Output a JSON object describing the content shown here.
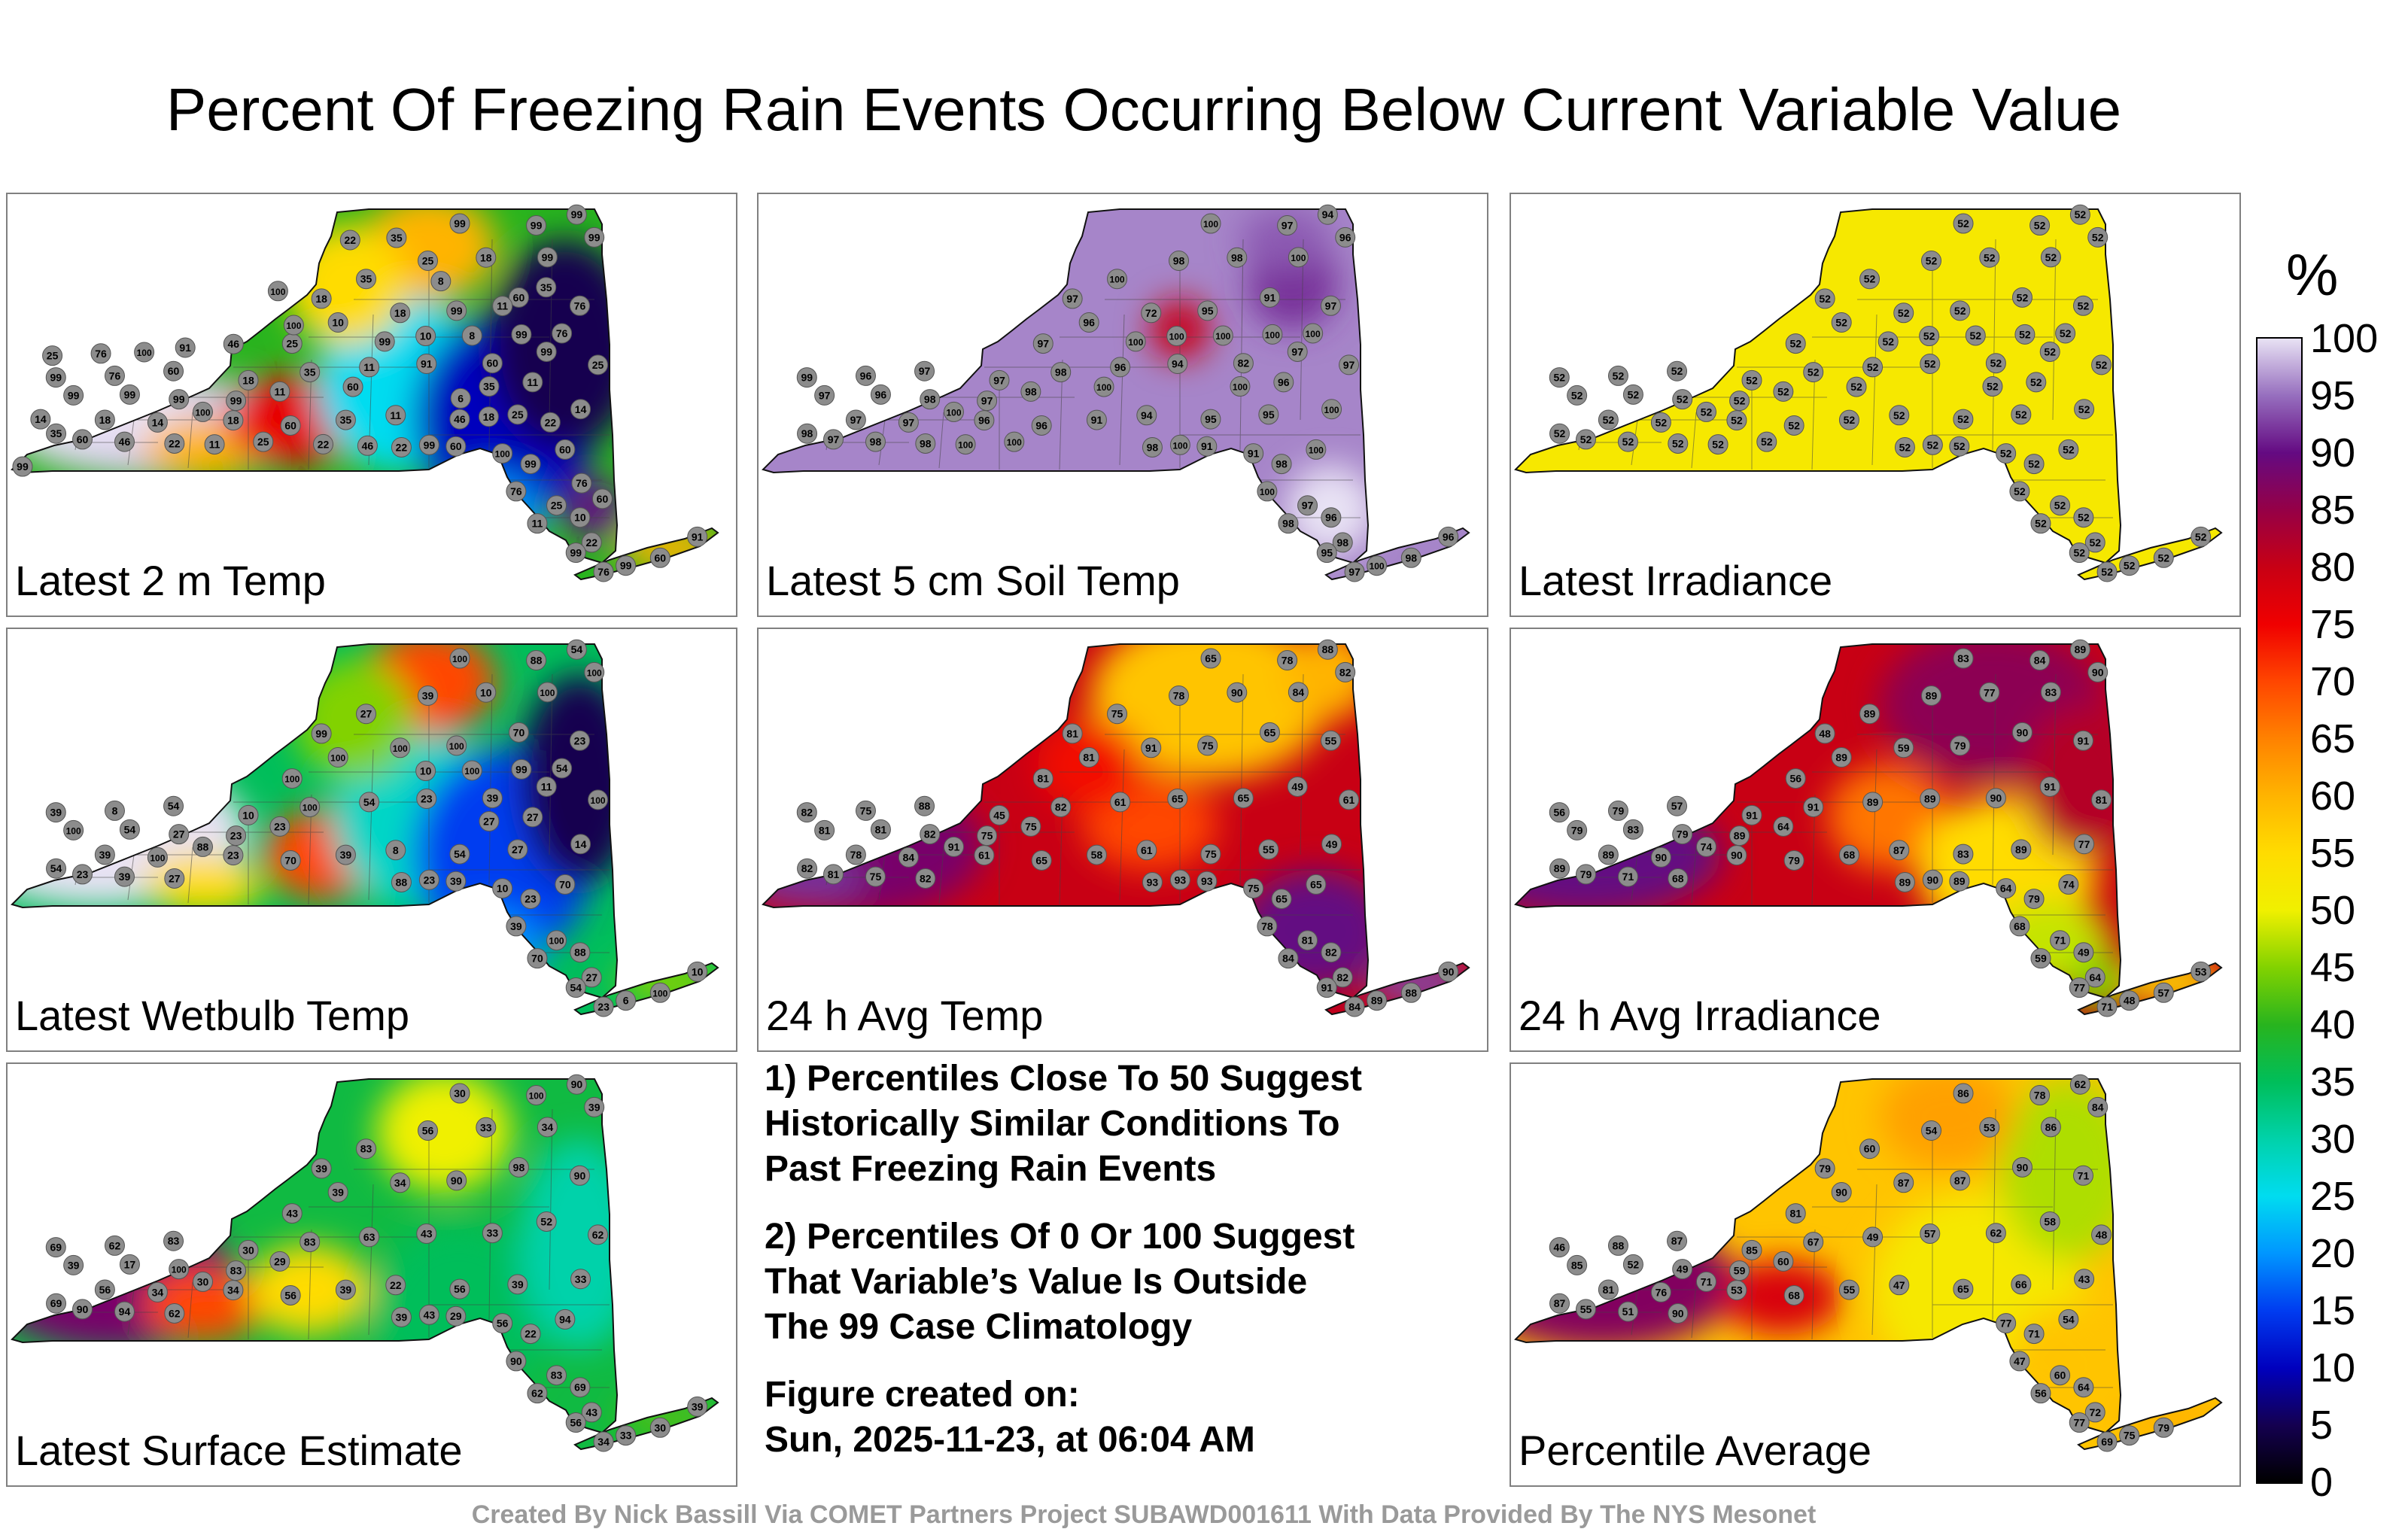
{
  "title": "Percent Of Freezing Rain Events Occurring Below Current Variable Value",
  "panels": [
    {
      "label": "Latest 2 m Temp",
      "scheme": "mixed_2m",
      "stations": [
        18,
        60,
        35,
        11,
        46,
        25,
        14,
        18,
        35,
        11,
        91,
        60,
        99,
        25,
        10,
        18,
        99,
        60,
        76,
        35,
        25,
        18,
        99,
        99,
        99,
        99,
        99,
        60,
        46,
        22,
        35,
        18,
        14,
        100,
        99,
        99,
        99,
        99,
        99,
        76,
        60,
        25,
        18,
        11,
        100,
        99,
        60,
        76,
        25,
        10,
        22,
        11,
        99,
        76,
        99,
        60,
        91,
        60,
        99,
        22,
        35,
        11,
        10,
        8,
        99,
        76,
        99,
        60,
        25,
        11,
        22,
        46,
        6,
        11,
        35,
        8,
        35,
        22,
        100,
        100,
        46,
        91,
        100,
        76,
        25,
        14,
        99,
        76,
        60,
        22,
        18
      ]
    },
    {
      "label": "Latest 5 cm Soil Temp",
      "scheme": "high_soil",
      "stations": [
        96,
        96,
        91,
        94,
        95,
        95,
        100,
        97,
        98,
        96,
        94,
        82,
        97,
        97,
        96,
        72,
        95,
        91,
        97,
        100,
        98,
        98,
        100,
        96,
        100,
        97,
        94,
        97,
        98,
        98,
        98,
        97,
        97,
        100,
        97,
        96,
        98,
        97,
        99,
        96,
        97,
        97,
        97,
        98,
        91,
        98,
        100,
        100,
        97,
        96,
        98,
        98,
        95,
        97,
        100,
        98,
        96,
        91,
        100,
        98,
        100,
        96,
        100,
        100,
        100,
        100,
        100,
        100,
        100,
        100
      ]
    },
    {
      "label": "Latest Irradiance",
      "scheme": "uniform_52",
      "stations": [
        52,
        52,
        52,
        52,
        52,
        52,
        52,
        52,
        52,
        52,
        52,
        52,
        52,
        52,
        52,
        52,
        52,
        52,
        52,
        52,
        52,
        52,
        52,
        52,
        52,
        52,
        52,
        52,
        52,
        52,
        52,
        52,
        52,
        52,
        52,
        52,
        52,
        52,
        52,
        52,
        52,
        52,
        52,
        52,
        52,
        52,
        52,
        52,
        52,
        52,
        52,
        52,
        52,
        52,
        52,
        52,
        52,
        52,
        52,
        52,
        52,
        52,
        52,
        52,
        52,
        52,
        52,
        52,
        52,
        52
      ]
    },
    {
      "label": "Latest Wetbulb Temp",
      "scheme": "mixed_wb",
      "stations": [
        23,
        70,
        39,
        8,
        54,
        27,
        14,
        10,
        100,
        54,
        23,
        39,
        11,
        100,
        100,
        100,
        100,
        70,
        23,
        27,
        39,
        10,
        100,
        100,
        100,
        88,
        54,
        23,
        39,
        27,
        54,
        39,
        100,
        88,
        100,
        54,
        27,
        23,
        39,
        8,
        54,
        100,
        99,
        23,
        10,
        23,
        70,
        39,
        100,
        88,
        27,
        70,
        54,
        23,
        6,
        100,
        10,
        39,
        23,
        88,
        27,
        27,
        10,
        100,
        99,
        54
      ]
    },
    {
      "label": "24 h Avg Temp",
      "scheme": "avg_temp",
      "stations": [
        61,
        65,
        58,
        61,
        75,
        55,
        49,
        45,
        82,
        61,
        65,
        65,
        49,
        61,
        81,
        91,
        75,
        65,
        55,
        75,
        78,
        90,
        84,
        82,
        65,
        78,
        88,
        81,
        75,
        82,
        82,
        78,
        84,
        91,
        81,
        81,
        82,
        75,
        82,
        75,
        88,
        81,
        81,
        75,
        75,
        65,
        65,
        78,
        81,
        82,
        82,
        84,
        91,
        84,
        89,
        88,
        90,
        93,
        93,
        93
      ]
    },
    {
      "label": "24 h Avg Irradiance",
      "scheme": "avg_irr",
      "stations": [
        90,
        79,
        68,
        87,
        83,
        89,
        77,
        91,
        91,
        89,
        89,
        90,
        91,
        81,
        89,
        59,
        79,
        90,
        91,
        89,
        89,
        77,
        83,
        90,
        83,
        84,
        89,
        79,
        71,
        68,
        89,
        89,
        90,
        74,
        79,
        83,
        79,
        89,
        56,
        79,
        57,
        56,
        48,
        64,
        64,
        79,
        74,
        68,
        71,
        49,
        64,
        59,
        77,
        71,
        48,
        57,
        53,
        89,
        90,
        89
      ]
    },
    {
      "label": "Latest Surface Estimate",
      "scheme": "surface",
      "stations": [
        34,
        56,
        39,
        22,
        56,
        39,
        33,
        30,
        83,
        63,
        43,
        33,
        52,
        62,
        39,
        34,
        90,
        98,
        90,
        83,
        56,
        33,
        34,
        39,
        30,
        100,
        90,
        90,
        94,
        62,
        69,
        56,
        34,
        30,
        39,
        17,
        100,
        83,
        69,
        62,
        83,
        43,
        39,
        29,
        56,
        22,
        94,
        90,
        83,
        69,
        43,
        62,
        56,
        34,
        33,
        30,
        39,
        29,
        43,
        39
      ]
    },
    {
      "label": "Percentile Average",
      "scheme": "average",
      "stations": [
        53,
        68,
        55,
        47,
        65,
        66,
        43,
        85,
        67,
        49,
        57,
        62,
        58,
        48,
        90,
        87,
        87,
        90,
        71,
        60,
        54,
        53,
        86,
        84,
        86,
        78,
        62,
        55,
        51,
        90,
        87,
        81,
        76,
        71,
        85,
        52,
        49,
        59,
        46,
        88,
        87,
        81,
        79,
        60,
        77,
        71,
        54,
        47,
        60,
        64,
        72,
        56,
        77,
        69,
        75,
        79
      ]
    }
  ],
  "notes": [
    "1) Percentiles Close To 50 Suggest\nHistorically Similar Conditions To\nPast Freezing Rain Events",
    "2) Percentiles Of 0 Or 100 Suggest\nThat Variable’s Value Is Outside\nThe 99 Case Climatology",
    "Figure created on:\nSun, 2025-11-23, at 06:04 AM"
  ],
  "colorbar": {
    "unit": "%",
    "ticks": [
      "100",
      "95",
      "90",
      "85",
      "80",
      "75",
      "70",
      "65",
      "60",
      "55",
      "50",
      "45",
      "40",
      "35",
      "30",
      "25",
      "20",
      "15",
      "10",
      "5",
      "0"
    ]
  },
  "credit": "Created By Nick Bassill Via COMET Partners Project SUBAWD001611 With Data Provided By The NYS Mesonet"
}
